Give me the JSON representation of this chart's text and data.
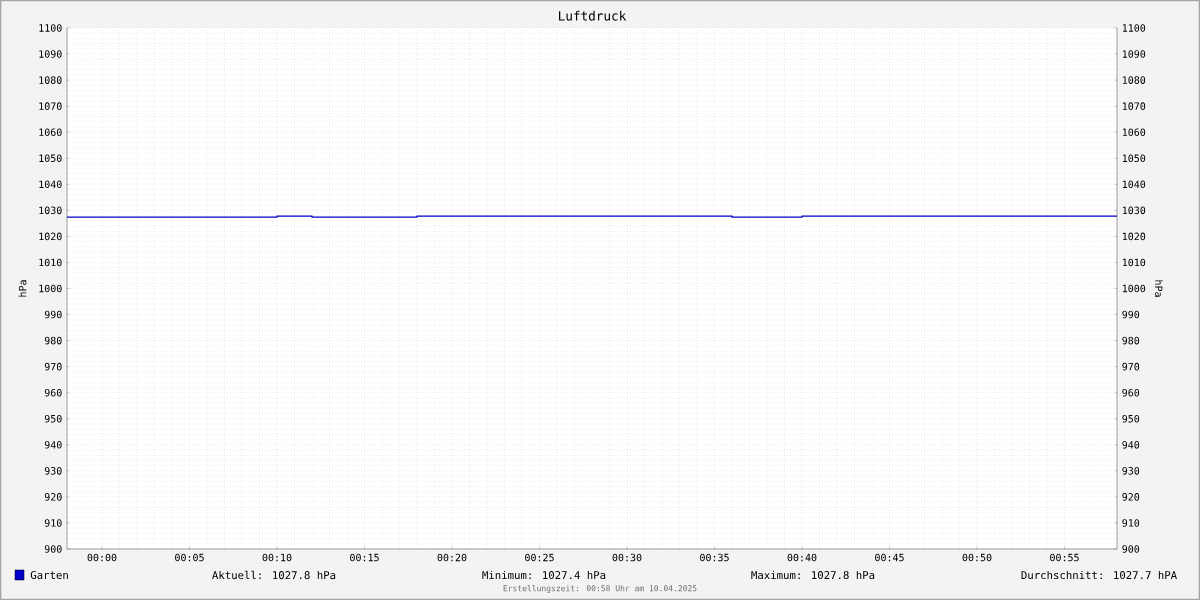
{
  "chart_data": {
    "type": "step",
    "title": "Luftdruck",
    "ylabel": "hPa",
    "y2label": "hPa",
    "x": [
      "2025-04-09T23:58",
      "2025-04-10T00:10",
      "2025-04-10T00:12",
      "2025-04-10T00:18",
      "2025-04-10T00:36",
      "2025-04-10T00:40",
      "2025-04-10T00:58"
    ],
    "series": [
      {
        "name": "Garten",
        "color": "#0000cc",
        "values": [
          1027.4,
          1027.8,
          1027.4,
          1027.8,
          1027.4,
          1027.8,
          1027.8
        ]
      }
    ],
    "xlim": [
      "2025-04-09T23:58",
      "2025-04-10T00:58"
    ],
    "xticks": [
      {
        "value": "2025-04-10T00:00",
        "label": "00:00"
      },
      {
        "value": "2025-04-10T00:05",
        "label": "00:05"
      },
      {
        "value": "2025-04-10T00:10",
        "label": "00:10"
      },
      {
        "value": "2025-04-10T00:15",
        "label": "00:15"
      },
      {
        "value": "2025-04-10T00:20",
        "label": "00:20"
      },
      {
        "value": "2025-04-10T00:25",
        "label": "00:25"
      },
      {
        "value": "2025-04-10T00:30",
        "label": "00:30"
      },
      {
        "value": "2025-04-10T00:35",
        "label": "00:35"
      },
      {
        "value": "2025-04-10T00:40",
        "label": "00:40"
      },
      {
        "value": "2025-04-10T00:45",
        "label": "00:45"
      },
      {
        "value": "2025-04-10T00:50",
        "label": "00:50"
      },
      {
        "value": "2025-04-10T00:55",
        "label": "00:55"
      }
    ],
    "ylim": [
      900,
      1100
    ],
    "yticks": [
      900,
      910,
      920,
      930,
      940,
      950,
      960,
      970,
      980,
      990,
      1000,
      1010,
      1020,
      1030,
      1040,
      1050,
      1060,
      1070,
      1080,
      1090,
      1100
    ],
    "y2lim": [
      900,
      1100
    ],
    "y2ticks": [
      900,
      910,
      920,
      930,
      940,
      950,
      960,
      970,
      980,
      990,
      1000,
      1010,
      1020,
      1030,
      1040,
      1050,
      1060,
      1070,
      1080,
      1090,
      1100
    ],
    "grid": true,
    "legend": "bottom left",
    "annotations": [
      "Aktuell: 1027.8 hPa",
      "Minimum: 1027.4 hPa",
      "Maximum: 1027.8 hPa",
      "Durchschnitt: 1027.7 hPA",
      "Erstellungszeit: 00:58 Uhr am 10.04.2025"
    ]
  }
}
